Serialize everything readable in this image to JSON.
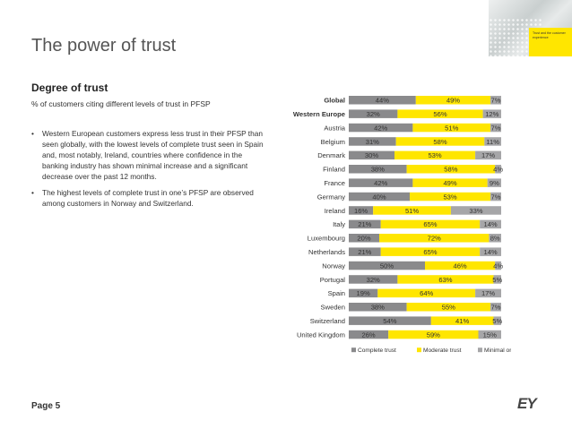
{
  "header": {
    "title": "The power of trust"
  },
  "corner_badge_text": "Trust and the customer experience",
  "section": {
    "subtitle": "Degree of trust",
    "description": "% of customers citing different levels of trust in PFSP",
    "bullets": [
      "Western European customers express less trust in their PFSP than seen globally, with the lowest levels of complete trust seen in Spain and, most notably, Ireland, countries where confidence in the banking industry has shown minimal increase and a significant decrease over the past 12 months.",
      "The highest levels of complete trust in one’s PFSP are observed among customers in Norway and Switzerland."
    ]
  },
  "footer": {
    "page": "Page 5",
    "logo": "EY"
  },
  "colors": {
    "complete": "#8a8a8c",
    "moderate": "#ffe600",
    "minimal": "#a6a6a8"
  },
  "chart_data": {
    "type": "bar",
    "orientation": "horizontal",
    "stacked": true,
    "categories": [
      "Global",
      "Western Europe",
      "Austria",
      "Belgium",
      "Denmark",
      "Finland",
      "France",
      "Germany",
      "Ireland",
      "Italy",
      "Luxembourg",
      "Netherlands",
      "Norway",
      "Portugal",
      "Spain",
      "Sweden",
      "Switzerland",
      "United Kingdom"
    ],
    "bold_categories": [
      "Global",
      "Western Europe"
    ],
    "series": [
      {
        "name": "Complete trust",
        "values": [
          44,
          32,
          42,
          31,
          30,
          38,
          42,
          40,
          16,
          21,
          20,
          21,
          50,
          32,
          19,
          38,
          54,
          26
        ]
      },
      {
        "name": "Moderate trust",
        "values": [
          49,
          56,
          51,
          58,
          53,
          58,
          49,
          53,
          51,
          65,
          72,
          65,
          46,
          63,
          64,
          55,
          41,
          59
        ]
      },
      {
        "name": "Minimal or no trust",
        "values": [
          7,
          12,
          7,
          11,
          17,
          4,
          9,
          7,
          33,
          14,
          8,
          14,
          4,
          5,
          17,
          7,
          5,
          15
        ]
      }
    ],
    "legend": "bottom",
    "unit": "%"
  }
}
